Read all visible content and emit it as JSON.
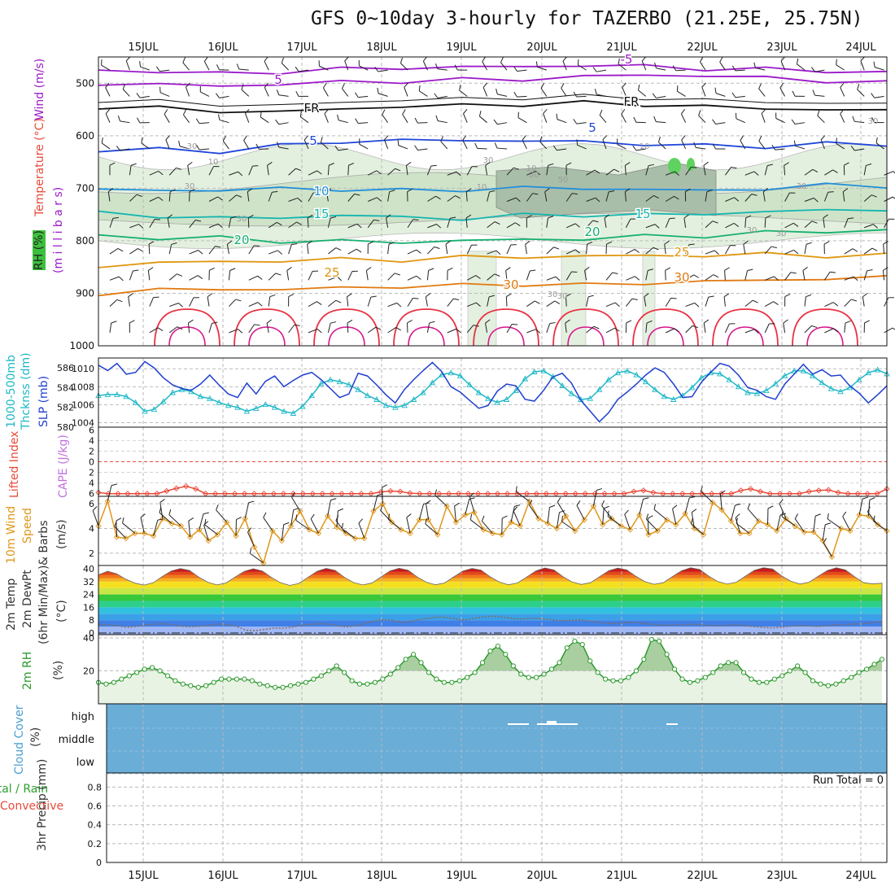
{
  "title": "GFS 0~10day 3-hourly for TAZERBO (21.25E, 25.75N)",
  "run_total": "Run Total = 0",
  "date_labels": [
    "15JUL",
    "16JUL",
    "17JUL",
    "18JUL",
    "19JUL",
    "20JUL",
    "21JUL",
    "22JUL",
    "23JUL",
    "24JUL"
  ],
  "panel_labels": {
    "p1": {
      "rh": "RH (%)",
      "temp": "Temperature (°C)",
      "wind": "Wind (m/s)",
      "pres": "(m i l l i b a r s)"
    },
    "p2": {
      "thick1": "1000-500mb",
      "thick2": "Thcknss (dm)",
      "slp": "SLP (mb)"
    },
    "p3": {
      "li": "Lifted Index",
      "cape": "CAPE (J/kg)"
    },
    "p4": {
      "a": "10m Wind",
      "b": "Speed",
      "c": "& Barbs",
      "unit": "(m/s)"
    },
    "p5": {
      "a": "2m Temp",
      "b": "2m DewPt",
      "c": "(6hr Min/Max)",
      "unit": "(°C)"
    },
    "p6": {
      "a": "2m RH",
      "unit": "(%)"
    },
    "p7": {
      "a": "Cloud Cover",
      "unit": "(%)"
    },
    "p8": {
      "a": "Total / Rain",
      "b": "Convective",
      "c": "3hr Precip (mm)"
    }
  },
  "contour_labels": [
    {
      "t": "-5",
      "c": "#9b19c9"
    },
    {
      "t": "5",
      "c": "#9b19c9"
    },
    {
      "t": "FR",
      "c": "#111111"
    },
    {
      "t": "FR",
      "c": "#111111"
    },
    {
      "t": "5",
      "c": "#1f46d9"
    },
    {
      "t": "5",
      "c": "#1f46d9"
    },
    {
      "t": "10",
      "c": "#1f8fd9"
    },
    {
      "t": "15",
      "c": "#14b5b0"
    },
    {
      "t": "15",
      "c": "#14b5b0"
    },
    {
      "t": "20",
      "c": "#15b070"
    },
    {
      "t": "20",
      "c": "#15b070"
    },
    {
      "t": "25",
      "c": "#e0960f"
    },
    {
      "t": "25",
      "c": "#e0960f"
    },
    {
      "t": "30",
      "c": "#e07a10"
    },
    {
      "t": "30",
      "c": "#e07a10"
    }
  ],
  "rh_contour_labels": [
    "30",
    "10",
    "30",
    "30",
    "50",
    "10",
    "10",
    "30",
    "30",
    "30",
    "30",
    "30",
    "30",
    "10",
    "30",
    "30"
  ],
  "chart_data": [
    {
      "type": "line",
      "panel": "pressure-time cross section",
      "ylabel": "(millibars)",
      "y_ticks": [
        500,
        600,
        700,
        800,
        900,
        1000
      ],
      "ylim": [
        450,
        1000
      ],
      "x_labels": [
        "15JUL",
        "16JUL",
        "17JUL",
        "18JUL",
        "19JUL",
        "20JUL",
        "21JUL",
        "22JUL",
        "23JUL",
        "24JUL"
      ],
      "series": [
        {
          "name": "-5",
          "level_mb": [
            475,
            478,
            482,
            478,
            474,
            470,
            470,
            468,
            466,
            468,
            472,
            474,
            476,
            480
          ]
        },
        {
          "name": "5",
          "level_mb": [
            500,
            503,
            505,
            502,
            498,
            496,
            494,
            492,
            488,
            484,
            486,
            490,
            495,
            500
          ]
        },
        {
          "name": "FR",
          "level_mb": [
            545,
            548,
            552,
            556,
            548,
            545,
            542,
            540,
            538,
            540,
            545,
            548,
            550,
            553
          ]
        },
        {
          "name": "5",
          "level_mb": [
            630,
            625,
            630,
            620,
            610,
            610,
            608,
            610,
            612,
            615,
            620,
            620,
            615,
            618
          ]
        },
        {
          "name": "10",
          "level_mb": [
            705,
            702,
            705,
            700,
            702,
            705,
            702,
            700,
            700,
            702,
            705,
            700,
            695,
            695
          ]
        },
        {
          "name": "15",
          "level_mb": [
            748,
            752,
            758,
            755,
            752,
            755,
            758,
            752,
            750,
            752,
            748,
            745,
            742,
            740
          ]
        },
        {
          "name": "20",
          "level_mb": [
            790,
            795,
            795,
            800,
            802,
            802,
            800,
            798,
            796,
            792,
            790,
            785,
            782,
            780
          ]
        },
        {
          "name": "25",
          "level_mb": [
            848,
            842,
            840,
            838,
            836,
            836,
            832,
            830,
            830,
            828,
            828,
            826,
            828,
            828
          ]
        },
        {
          "name": "30",
          "level_mb": [
            900,
            895,
            890,
            895,
            888,
            888,
            885,
            882,
            885,
            880,
            878,
            875,
            872,
            870
          ]
        }
      ]
    },
    {
      "type": "line",
      "panel": "thickness and SLP",
      "series": [
        {
          "name": "SLP (mb)",
          "axis": "right",
          "values": [
            1010.4,
            1009.8,
            1010.6,
            1009.4,
            1009.6,
            1010.8,
            1010.1,
            1009,
            1008.2,
            1007.8,
            1007.6,
            1008.3,
            1009.3,
            1008.2,
            1007.2,
            1006.8,
            1008.4,
            1007.2,
            1008.6,
            1009.2,
            1008,
            1008.7,
            1009.3,
            1009.6,
            1008.8,
            1007.8,
            1006.8,
            1007.2,
            1009.5,
            1009.2,
            1008.2,
            1007.1,
            1006.2,
            1007.7,
            1008.8,
            1009.8,
            1010.7,
            1009.7,
            1008,
            1007.4,
            1006.5,
            1005.6,
            1005.9,
            1007.5,
            1008.3,
            1008.1,
            1006.6,
            1006.4,
            1007.6,
            1009.1,
            1009.5,
            1008.4,
            1006.5,
            1005.3,
            1004.1,
            1005.1,
            1006.6,
            1007.4,
            1008.3,
            1009.3,
            1010.1,
            1009.6,
            1008.3,
            1006.8,
            1006.9,
            1008.5,
            1009.6,
            1010.6,
            1010.3,
            1009.3,
            1007.9,
            1007.6,
            1006.9,
            1006.6,
            1008.3,
            1009.4,
            1010.5,
            1009.4,
            1009.9,
            1009.2,
            1009.3,
            1008.1,
            1007.3,
            1006.2,
            1007.1,
            1008.1
          ]
        },
        {
          "name": "1000-500mb Thcknss (dm)",
          "axis": "left",
          "values": [
            583.2,
            583.3,
            583.3,
            583.1,
            582.5,
            581.6,
            581.8,
            582.6,
            583.5,
            583.8,
            583.6,
            583.1,
            582.9,
            582.5,
            582.2,
            582.0,
            581.6,
            581.9,
            582.3,
            582.0,
            581.6,
            581.4,
            582.1,
            583.2,
            584.4,
            584.8,
            584.6,
            584.3,
            583.8,
            583.2,
            582.8,
            582.2,
            582.0,
            582.2,
            582.8,
            583.5,
            584.5,
            585.3,
            585.5,
            585.2,
            584.3,
            583.5,
            582.9,
            582.5,
            582.8,
            583.7,
            584.9,
            585.6,
            585.7,
            585.1,
            584.2,
            583.4,
            582.8,
            582.9,
            583.8,
            584.8,
            585.5,
            585.7,
            585.3,
            584.6,
            583.8,
            583.1,
            582.8,
            583.2,
            584.0,
            585.0,
            585.5,
            585.4,
            584.8,
            584.1,
            583.5,
            583.4,
            583.7,
            584.4,
            585.2,
            585.7,
            585.7,
            585.2,
            584.5,
            583.9,
            583.6,
            584.0,
            584.8,
            585.5,
            585.8,
            585.4
          ]
        }
      ],
      "ylim_left": [
        580,
        586
      ],
      "ylim_right": [
        1003.5,
        1011
      ]
    },
    {
      "type": "line",
      "panel": "lifted index and CAPE",
      "series": [
        {
          "name": "Lifted Index",
          "values": [
            5.8,
            6,
            6,
            6,
            6,
            6,
            6,
            5.5,
            5,
            4.6,
            5.1,
            6,
            6,
            6,
            6,
            6,
            6,
            6,
            6,
            6,
            6,
            6,
            6,
            6,
            6,
            6,
            6,
            6,
            6,
            5.7,
            5.5,
            5.6,
            5.9,
            6,
            6,
            6,
            6,
            6,
            6,
            6,
            6,
            6,
            6,
            6,
            6,
            6,
            6,
            6,
            6,
            6,
            6,
            6,
            6,
            6,
            6,
            5.6,
            5.4,
            5.8,
            6,
            6,
            6,
            6,
            6,
            6,
            6,
            6,
            5.4,
            5.1,
            5.6,
            6,
            6,
            6,
            6,
            5.6,
            5.4,
            5.3,
            5.8,
            6,
            6,
            6,
            6,
            5.1
          ]
        }
      ],
      "ylim": [
        6,
        -6
      ]
    },
    {
      "type": "line",
      "panel": "10m wind speed",
      "series": [
        {
          "name": "10m Wind Speed (m/s)",
          "values": [
            4.2,
            6.2,
            3.3,
            3.2,
            3.6,
            3.6,
            3.4,
            4.8,
            4.4,
            4.2,
            3.3,
            3.9,
            3.0,
            3.5,
            4.5,
            3.4,
            4.8,
            2.5,
            1.2,
            3.8,
            3.0,
            4.2,
            5.4,
            3.9,
            3.6,
            5.0,
            4.1,
            3.6,
            3.2,
            3.2,
            5.4,
            6.0,
            4.5,
            3.9,
            3.6,
            4.7,
            4.7,
            3.5,
            5.8,
            4.5,
            5.1,
            5.3,
            3.9,
            3.6,
            3.5,
            4.5,
            4.2,
            6.2,
            4.8,
            4.4,
            4.0,
            5.0,
            3.8,
            4.7,
            5.8,
            4.3,
            4.8,
            4.2,
            3.9,
            5.1,
            3.5,
            3.8,
            4.7,
            4.3,
            5.2,
            4.0,
            3.5,
            6.1,
            5.5,
            4.6,
            3.6,
            3.6,
            4.6,
            4.3,
            3.8,
            4.8,
            4.2,
            3.7,
            3.7,
            3.0,
            1.7,
            4.0,
            3.8,
            5.1,
            5.0,
            4.3,
            3.8
          ]
        }
      ],
      "ylim": [
        1,
        6.6
      ]
    },
    {
      "type": "area",
      "panel": "2m temperature and dewpoint",
      "series": [
        {
          "name": "2m Temp (°C)",
          "values": [
            36.2,
            38.4,
            36.8,
            33.5,
            31.0,
            29.8,
            31.2,
            35.1,
            38.6,
            40.1,
            38.9,
            34.8,
            31.6,
            29.9,
            31.1,
            34.8,
            38.3,
            40.0,
            38.5,
            34.5,
            31.2,
            29.6,
            30.8,
            34.6,
            38.4,
            40.2,
            38.9,
            34.6,
            31.4,
            29.9,
            31.0,
            34.8,
            38.6,
            40.3,
            39.0,
            34.8,
            31.6,
            30.0,
            31.1,
            34.9,
            38.5,
            40.2,
            39.1,
            34.9,
            31.7,
            30.0,
            31.1,
            34.8,
            38.6,
            40.5,
            39.2,
            35.0,
            31.7,
            30.2,
            31.3,
            35.0,
            38.7,
            40.4,
            39.2,
            35.2,
            31.9,
            30.3,
            31.3,
            35.1,
            38.7,
            40.6,
            39.5,
            35.3,
            32.0,
            30.4,
            31.6,
            35.3,
            39.0,
            40.6,
            39.8,
            35.5,
            32.2,
            30.4,
            31.6,
            35.3,
            38.8,
            40.6,
            39.2,
            35.0,
            31.3,
            30.5,
            31.0
          ]
        },
        {
          "name": "2m DewPt (°C)",
          "values": [
            5.4,
            5.1,
            4.6,
            3.6,
            4.0,
            4.9,
            5.5,
            5.8,
            5.1,
            4.2,
            3.9,
            4.2,
            4.8,
            5.6,
            5.2,
            4.1,
            1.8,
            1.5,
            2.2,
            3.1,
            3.0,
            3.6,
            4.9,
            5.4,
            5.8,
            5.6,
            4.4,
            3.9,
            4.6,
            6.1,
            7.6,
            8.3,
            7.8,
            6.6,
            7.3,
            8.5,
            9.3,
            10.1,
            9.5,
            8.4,
            8.2,
            9.4,
            10.2,
            10.5,
            9.8,
            9.0,
            8.7,
            9.2,
            8.9,
            8.4,
            7.7,
            7.9,
            8.2,
            7.6,
            6.9,
            6.2,
            5.9,
            6.3,
            6.8,
            6.1,
            5.5,
            4.9,
            4.8,
            5.1,
            5.5,
            5.2,
            4.8,
            4.5,
            4.8,
            5.1,
            4.7,
            4.0,
            3.6,
            3.2,
            3.6,
            4.2,
            4.6,
            4.4,
            4.1,
            4.5,
            5.0,
            5.3,
            5.6,
            5.9,
            6.5,
            7.1
          ]
        }
      ],
      "y_ticks": [
        0,
        8,
        16,
        24,
        32,
        40
      ],
      "ylim": [
        -1,
        42
      ]
    },
    {
      "type": "area",
      "panel": "2m relative humidity",
      "series": [
        {
          "name": "2m RH (%)",
          "values": [
            13,
            12,
            13,
            15,
            17,
            19,
            21,
            22,
            20,
            17,
            14,
            12,
            11,
            10,
            11,
            13,
            15,
            15,
            15,
            15,
            14,
            12,
            11,
            10,
            10,
            11,
            12,
            13,
            15,
            17,
            20,
            23,
            19,
            14,
            12,
            12,
            13,
            15,
            18,
            22,
            27,
            30,
            25,
            19,
            15,
            13,
            13,
            14,
            16,
            19,
            25,
            32,
            35,
            30,
            23,
            18,
            16,
            16,
            18,
            21,
            25,
            34,
            38,
            36,
            26,
            19,
            15,
            14,
            14,
            16,
            20,
            27,
            39,
            38,
            30,
            21,
            15,
            13,
            14,
            16,
            19,
            23,
            25,
            25,
            19,
            15,
            13,
            13,
            15,
            17,
            20,
            23,
            19,
            14,
            12,
            11,
            12,
            14,
            16,
            19,
            21,
            24,
            27
          ]
        }
      ],
      "ylim": [
        0,
        40
      ]
    },
    {
      "type": "heatmap",
      "panel": "cloud cover",
      "categories": [
        "high",
        "middle",
        "low"
      ],
      "note": "near-zero cloud across all layers"
    },
    {
      "type": "bar",
      "panel": "3hr precipitation",
      "ylabel": "3hr Precip (mm)",
      "y_ticks": [
        0,
        0.2,
        0.4,
        0.6,
        0.8
      ],
      "ylim": [
        0,
        0.95
      ],
      "values": []
    }
  ],
  "colors": {
    "temp_label": "#e84a3a",
    "rh_label": "#22b022",
    "wind_label": "#9b19c9",
    "slp": "#1f3fd0",
    "thickness": "#1fb8c6",
    "lifted": "#e84a3a",
    "cape": "#c070e0",
    "wind10m": "#e0961a",
    "rh2m": "#2e9a2e",
    "cloud": "#6aadd7"
  }
}
